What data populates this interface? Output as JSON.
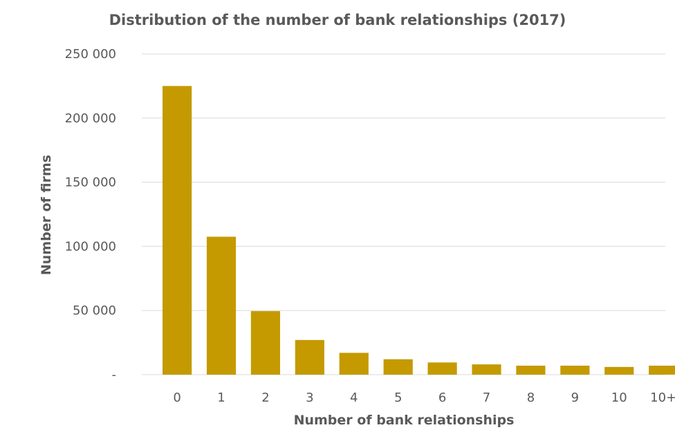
{
  "chart_data": {
    "type": "bar",
    "title": "Distribution of the number of bank relationships (2017)",
    "xlabel": "Number of bank relationships",
    "ylabel": "Number of firms",
    "categories": [
      "0",
      "1",
      "2",
      "3",
      "4",
      "5",
      "6",
      "7",
      "8",
      "9",
      "10",
      "10+"
    ],
    "values": [
      225000,
      107500,
      49500,
      27000,
      17000,
      12000,
      9500,
      8000,
      7000,
      7000,
      6000,
      7000
    ],
    "ylim": [
      0,
      250000
    ],
    "yticks": [
      0,
      50000,
      100000,
      150000,
      200000,
      250000
    ],
    "ytick_labels": [
      "-",
      "50 000",
      "100 000",
      "150 000",
      "200 000",
      "250 000"
    ],
    "grid": true,
    "legend": "none",
    "bar_color": "#C49A00"
  }
}
